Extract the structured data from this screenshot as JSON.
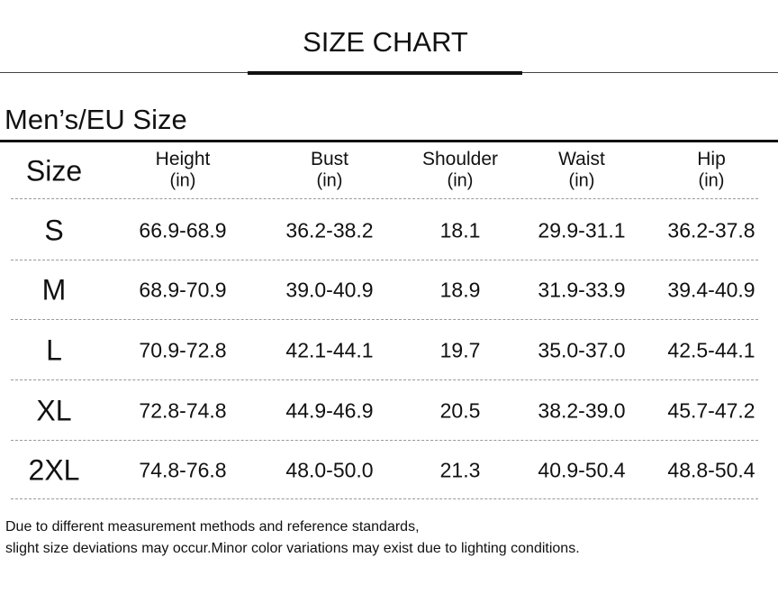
{
  "header": {
    "title": "SIZE CHART"
  },
  "section": {
    "title": "Men’s/EU Size"
  },
  "table": {
    "columns": [
      {
        "name": "Size"
      },
      {
        "name": "Height",
        "unit": "(in)"
      },
      {
        "name": "Bust",
        "unit": "(in)"
      },
      {
        "name": "Shoulder",
        "unit": "(in)"
      },
      {
        "name": "Waist",
        "unit": "(in)"
      },
      {
        "name": "Hip",
        "unit": "(in)"
      }
    ],
    "rows": [
      [
        "S",
        "66.9-68.9",
        "36.2-38.2",
        "18.1",
        "29.9-31.1",
        "36.2-37.8"
      ],
      [
        "M",
        "68.9-70.9",
        "39.0-40.9",
        "18.9",
        "31.9-33.9",
        "39.4-40.9"
      ],
      [
        "L",
        "70.9-72.8",
        "42.1-44.1",
        "19.7",
        "35.0-37.0",
        "42.5-44.1"
      ],
      [
        "XL",
        "72.8-74.8",
        "44.9-46.9",
        "20.5",
        "38.2-39.0",
        "45.7-47.2"
      ],
      [
        "2XL",
        "74.8-76.8",
        "48.0-50.0",
        "21.3",
        "40.9-50.4",
        "48.8-50.4"
      ]
    ]
  },
  "footnote": {
    "lines": [
      "Due to different measurement methods and reference standards,",
      "slight size deviations may occur.Minor color variations may exist due to lighting conditions."
    ]
  }
}
